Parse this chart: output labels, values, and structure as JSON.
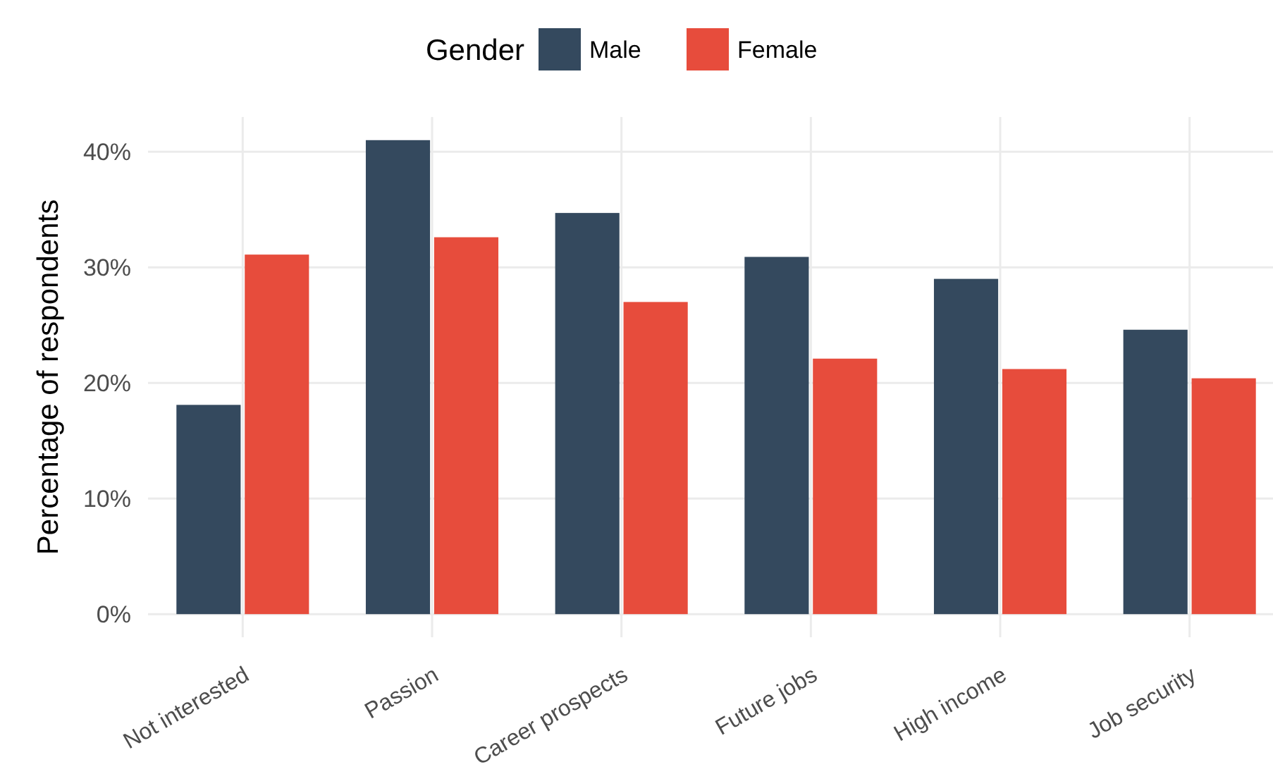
{
  "chart_data": {
    "type": "bar",
    "categories": [
      "Not interested",
      "Passion",
      "Career prospects",
      "Future jobs",
      "High income",
      "Job security"
    ],
    "series": [
      {
        "name": "Male",
        "color": "#34495e",
        "values": [
          18.1,
          41.0,
          34.7,
          30.9,
          29.0,
          24.6
        ]
      },
      {
        "name": "Female",
        "color": "#e74c3c",
        "values": [
          31.1,
          32.6,
          27.0,
          22.1,
          21.2,
          20.4
        ]
      }
    ],
    "ylabel": "Percentage of respondents",
    "legend_title": "Gender",
    "legend": "top",
    "grid": true,
    "ylim": [
      -2,
      43
    ],
    "yticks": [
      {
        "value": 0,
        "label": "0%"
      },
      {
        "value": 10,
        "label": "10%"
      },
      {
        "value": 20,
        "label": "20%"
      },
      {
        "value": 30,
        "label": "30%"
      },
      {
        "value": 40,
        "label": "40%"
      }
    ]
  }
}
